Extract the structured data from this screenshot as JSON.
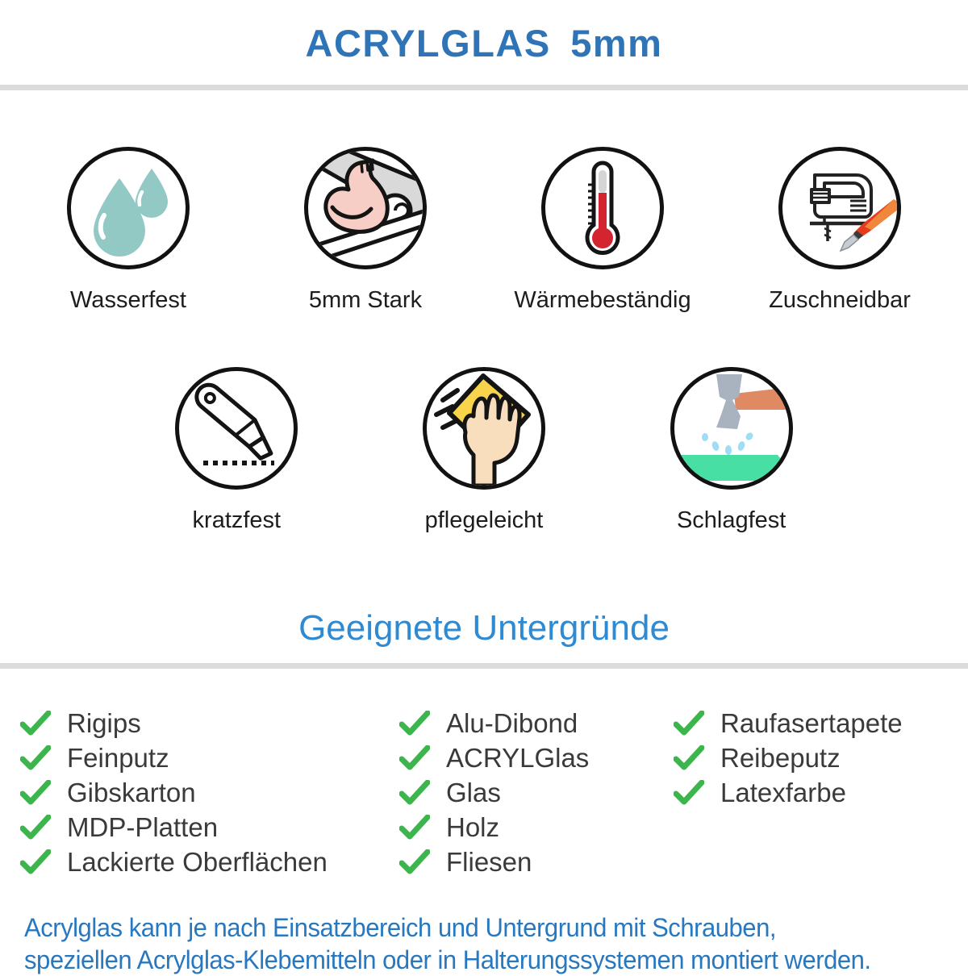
{
  "header": {
    "title": "ACRYLGLAS 5mm"
  },
  "features": {
    "row1": [
      {
        "label": "Wasserfest",
        "icon": "water-drops-icon"
      },
      {
        "label": "5mm Stark",
        "icon": "muscle-arm-icon"
      },
      {
        "label": "Wärmebeständig",
        "icon": "thermometer-icon"
      },
      {
        "label": "Zuschneidbar",
        "icon": "jigsaw-cutter-icon"
      }
    ],
    "row2": [
      {
        "label": "kratzfest",
        "icon": "utility-knife-icon"
      },
      {
        "label": "pflegeleicht",
        "icon": "cleaning-hand-icon"
      },
      {
        "label": "Schlagfest",
        "icon": "hammer-icon"
      }
    ]
  },
  "substrates": {
    "heading": "Geeignete Untergründe",
    "columns": [
      {
        "items": [
          "Rigips",
          "Feinputz",
          "Gibskarton",
          "MDP-Platten",
          "Lackierte Oberflächen"
        ]
      },
      {
        "items": [
          "Alu-Dibond",
          "ACRYLGlas",
          "Glas",
          "Holz",
          "Fliesen"
        ]
      },
      {
        "items": [
          "Raufasertapete",
          "Reibeputz",
          "Latexfarbe"
        ]
      }
    ]
  },
  "footer": {
    "line1": "Acrylglas kann je nach Einsatzbereich und Untergrund mit Schrauben,",
    "line2": "speziellen Acrylglas-Klebemitteln oder in Halterungssystemen montiert werden."
  },
  "colors": {
    "title_blue": "#2e74b6",
    "subtitle_blue": "#2e8ad2",
    "footer_blue": "#2878c0",
    "check_green": "#3db54d",
    "divider_gray": "#dcdcdc",
    "drop_teal": "#92c9c5",
    "thermometer_red": "#d42430",
    "cloth_yellow": "#f7d44c",
    "surface_green": "#47dfa4",
    "handle_orange": "#e08a63"
  }
}
